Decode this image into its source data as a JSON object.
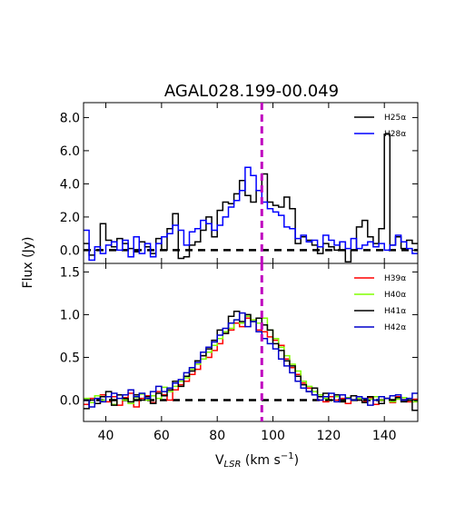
{
  "chart_data": {
    "type": "line",
    "title": "AGAL028.199-00.049",
    "xlabel": "V",
    "xlabel_sub": "LSR",
    "xlabel_units_open": " (km s",
    "xlabel_units_exp": "−1",
    "xlabel_units_close": ")",
    "ylabel": "Flux (Jy)",
    "xlim": [
      32,
      152
    ],
    "x_ticks": [
      "40",
      "60",
      "80",
      "100",
      "120",
      "140"
    ],
    "x_tick_values": [
      40,
      60,
      80,
      100,
      120,
      140
    ],
    "vline_x": 96,
    "vline_color": "#bf00bf",
    "panels": [
      {
        "name": "top",
        "ylim": [
          -0.8,
          8.9
        ],
        "y_ticks": [
          "0.0",
          "2.0",
          "4.0",
          "6.0",
          "8.0"
        ],
        "y_tick_values": [
          0,
          2,
          4,
          6,
          8
        ],
        "legend_position": "top-right",
        "series": [
          {
            "name": "H25α",
            "color": "#000000",
            "x": [
              32,
              34,
              36,
              38,
              40,
              42,
              44,
              46,
              48,
              50,
              52,
              54,
              56,
              58,
              60,
              62,
              64,
              66,
              68,
              70,
              72,
              74,
              76,
              78,
              80,
              82,
              84,
              86,
              88,
              90,
              92,
              94,
              96,
              98,
              100,
              102,
              104,
              106,
              108,
              110,
              112,
              114,
              116,
              118,
              120,
              122,
              124,
              126,
              128,
              130,
              132,
              134,
              136,
              138,
              140,
              142,
              144,
              146,
              148,
              150
            ],
            "y": [
              0.4,
              -0.3,
              0.0,
              1.6,
              0.6,
              0.2,
              0.7,
              0.4,
              0.1,
              -0.1,
              0.5,
              0.2,
              -0.2,
              0.7,
              0.0,
              1.3,
              2.2,
              -0.5,
              -0.4,
              0.3,
              0.5,
              1.2,
              2.0,
              0.8,
              2.4,
              2.9,
              2.8,
              3.4,
              4.2,
              3.3,
              2.9,
              3.6,
              4.6,
              2.9,
              2.7,
              2.6,
              3.2,
              2.5,
              0.4,
              0.8,
              0.6,
              0.3,
              -0.2,
              0.4,
              0.2,
              0.0,
              0.5,
              -0.7,
              0.0,
              1.4,
              1.8,
              0.8,
              0.4,
              1.3,
              7.0,
              0.3,
              0.8,
              0.1,
              0.6,
              0.4
            ]
          },
          {
            "name": "H28α",
            "color": "#0000ff",
            "x": [
              32,
              34,
              36,
              38,
              40,
              42,
              44,
              46,
              48,
              50,
              52,
              54,
              56,
              58,
              60,
              62,
              64,
              66,
              68,
              70,
              72,
              74,
              76,
              78,
              80,
              82,
              84,
              86,
              88,
              90,
              92,
              94,
              96,
              98,
              100,
              102,
              104,
              106,
              108,
              110,
              112,
              114,
              116,
              118,
              120,
              122,
              124,
              126,
              128,
              130,
              132,
              134,
              136,
              138,
              140,
              142,
              144,
              146,
              148,
              150
            ],
            "y": [
              1.2,
              -0.6,
              0.2,
              -0.2,
              0.3,
              0.5,
              0.0,
              0.6,
              -0.4,
              0.8,
              -0.2,
              0.4,
              -0.4,
              0.4,
              0.8,
              1.0,
              1.5,
              1.2,
              0.3,
              1.1,
              1.3,
              1.8,
              1.6,
              1.2,
              1.5,
              2.0,
              2.6,
              3.0,
              3.6,
              5.0,
              4.5,
              3.6,
              2.9,
              2.5,
              2.3,
              2.1,
              1.4,
              1.3,
              0.7,
              0.9,
              0.5,
              0.6,
              0.2,
              0.9,
              0.6,
              0.3,
              0.5,
              0.1,
              0.7,
              0.1,
              0.3,
              0.5,
              0.2,
              0.4,
              0.0,
              0.3,
              0.9,
              0.5,
              0.1,
              -0.2
            ]
          }
        ]
      },
      {
        "name": "bottom",
        "ylim": [
          -0.25,
          1.6
        ],
        "y_ticks": [
          "0.0",
          "0.5",
          "1.0",
          "1.5"
        ],
        "y_tick_values": [
          0,
          0.5,
          1.0,
          1.5
        ],
        "legend_position": "top-right",
        "series": [
          {
            "name": "H39α",
            "color": "#ff0000",
            "x": [
              32,
              34,
              36,
              38,
              40,
              42,
              44,
              46,
              48,
              50,
              52,
              54,
              56,
              58,
              60,
              62,
              64,
              66,
              68,
              70,
              72,
              74,
              76,
              78,
              80,
              82,
              84,
              86,
              88,
              90,
              92,
              94,
              96,
              98,
              100,
              102,
              104,
              106,
              108,
              110,
              112,
              114,
              116,
              118,
              120,
              122,
              124,
              126,
              128,
              130,
              132,
              134,
              136,
              138,
              140,
              142,
              144,
              146,
              148,
              150
            ],
            "y": [
              -0.05,
              0.02,
              -0.04,
              0.06,
              -0.02,
              0.04,
              -0.06,
              0.03,
              0.08,
              -0.08,
              0.02,
              0.05,
              -0.03,
              0.1,
              0.06,
              0.0,
              0.12,
              0.18,
              0.22,
              0.3,
              0.36,
              0.52,
              0.5,
              0.58,
              0.66,
              0.78,
              0.82,
              0.9,
              0.86,
              0.96,
              0.92,
              0.82,
              0.8,
              0.74,
              0.7,
              0.64,
              0.48,
              0.38,
              0.3,
              0.2,
              0.14,
              0.06,
              0.0,
              -0.02,
              0.04,
              0.0,
              0.02,
              -0.04,
              0.05,
              0.0,
              -0.02,
              0.03,
              -0.05,
              0.0,
              0.02,
              -0.03,
              0.04,
              0.0,
              -0.02,
              0.01
            ]
          },
          {
            "name": "H40α",
            "color": "#80ff00",
            "x": [
              32,
              34,
              36,
              38,
              40,
              42,
              44,
              46,
              48,
              50,
              52,
              54,
              56,
              58,
              60,
              62,
              64,
              66,
              68,
              70,
              72,
              74,
              76,
              78,
              80,
              82,
              84,
              86,
              88,
              90,
              92,
              94,
              96,
              98,
              100,
              102,
              104,
              106,
              108,
              110,
              112,
              114,
              116,
              118,
              120,
              122,
              124,
              126,
              128,
              130,
              132,
              134,
              136,
              138,
              140,
              142,
              144,
              146,
              148,
              150
            ],
            "y": [
              0.02,
              -0.03,
              0.05,
              0.0,
              0.04,
              -0.05,
              0.06,
              0.0,
              -0.04,
              0.03,
              0.07,
              0.0,
              0.05,
              0.02,
              0.15,
              0.1,
              0.16,
              0.22,
              0.26,
              0.36,
              0.42,
              0.48,
              0.56,
              0.64,
              0.72,
              0.8,
              0.84,
              0.94,
              0.9,
              0.98,
              0.94,
              0.9,
              0.96,
              0.82,
              0.72,
              0.62,
              0.52,
              0.42,
              0.34,
              0.22,
              0.16,
              0.1,
              0.06,
              0.02,
              0.0,
              0.04,
              -0.02,
              0.03,
              0.0,
              0.02,
              -0.03,
              0.01,
              0.04,
              0.0,
              0.02,
              -0.02,
              0.01,
              0.03,
              0.0,
              -0.02
            ]
          },
          {
            "name": "H41α",
            "color": "#000000",
            "x": [
              32,
              34,
              36,
              38,
              40,
              42,
              44,
              46,
              48,
              50,
              52,
              54,
              56,
              58,
              60,
              62,
              64,
              66,
              68,
              70,
              72,
              74,
              76,
              78,
              80,
              82,
              84,
              86,
              88,
              90,
              92,
              94,
              96,
              98,
              100,
              102,
              104,
              106,
              108,
              110,
              112,
              114,
              116,
              118,
              120,
              122,
              124,
              126,
              128,
              130,
              132,
              134,
              136,
              138,
              140,
              142,
              144,
              146,
              148,
              150
            ],
            "y": [
              -0.1,
              0.0,
              -0.04,
              0.04,
              0.1,
              -0.06,
              0.06,
              0.02,
              -0.02,
              0.06,
              0.0,
              0.04,
              -0.04,
              0.08,
              0.05,
              0.12,
              0.22,
              0.16,
              0.28,
              0.34,
              0.46,
              0.52,
              0.6,
              0.7,
              0.82,
              0.78,
              0.98,
              1.04,
              0.92,
              1.0,
              0.92,
              0.96,
              0.88,
              0.82,
              0.66,
              0.58,
              0.46,
              0.4,
              0.28,
              0.18,
              0.1,
              0.14,
              0.04,
              0.08,
              0.0,
              0.06,
              -0.02,
              0.02,
              0.05,
              0.0,
              -0.03,
              0.04,
              0.0,
              -0.04,
              0.02,
              0.0,
              0.03,
              -0.02,
              0.0,
              -0.12
            ]
          },
          {
            "name": "H42α",
            "color": "#0000cc",
            "x": [
              32,
              34,
              36,
              38,
              40,
              42,
              44,
              46,
              48,
              50,
              52,
              54,
              56,
              58,
              60,
              62,
              64,
              66,
              68,
              70,
              72,
              74,
              76,
              78,
              80,
              82,
              84,
              86,
              88,
              90,
              92,
              94,
              96,
              98,
              100,
              102,
              104,
              106,
              108,
              110,
              112,
              114,
              116,
              118,
              120,
              122,
              124,
              126,
              128,
              130,
              132,
              134,
              136,
              138,
              140,
              142,
              144,
              146,
              148,
              150
            ],
            "y": [
              0.0,
              -0.08,
              0.02,
              -0.02,
              0.04,
              0.08,
              0.02,
              0.06,
              0.12,
              0.04,
              0.08,
              0.02,
              0.1,
              0.16,
              0.1,
              0.14,
              0.2,
              0.24,
              0.32,
              0.38,
              0.44,
              0.56,
              0.62,
              0.68,
              0.76,
              0.84,
              0.9,
              0.94,
              1.02,
              0.86,
              0.92,
              0.8,
              0.72,
              0.66,
              0.6,
              0.48,
              0.4,
              0.32,
              0.22,
              0.14,
              0.1,
              0.06,
              0.0,
              0.04,
              0.08,
              -0.02,
              0.06,
              0.02,
              0.0,
              0.04,
              0.02,
              -0.06,
              0.0,
              0.04,
              0.02,
              0.05,
              0.06,
              0.0,
              0.02,
              0.08
            ]
          }
        ]
      }
    ]
  }
}
